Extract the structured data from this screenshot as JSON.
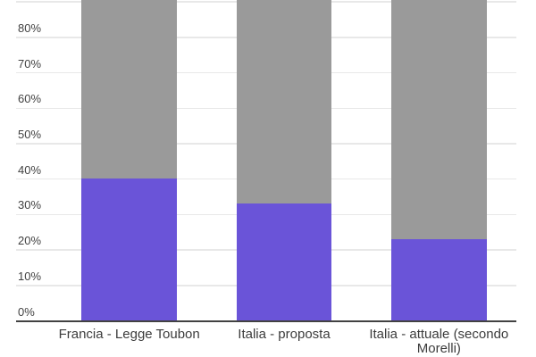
{
  "page": {
    "background": "#ffffff"
  },
  "chart_data": {
    "type": "bar",
    "stacked": true,
    "orientation": "vertical",
    "note": "Top of chart is cropped out of the screenshot; stacked bars run past the visible top edge (stacks assumed to total 100%). No title or legend visible.",
    "categories": [
      "Francia - Legge Toubon",
      "Italia - proposta",
      "Italia - attuale (secondo Morelli)"
    ],
    "series": [
      {
        "name": "purple-segment",
        "color": "#6A54D8",
        "values": [
          40,
          33,
          23
        ]
      },
      {
        "name": "gray-segment",
        "color": "#9A9A9A",
        "values": [
          60,
          67,
          77
        ]
      }
    ],
    "value_unit": "%",
    "y_axis": {
      "tick_values": [
        0,
        10,
        20,
        30,
        40,
        50,
        60,
        70,
        80
      ],
      "tick_labels": [
        "0%",
        "10%",
        "20%",
        "30%",
        "40%",
        "50%",
        "60%",
        "70%",
        "80%"
      ],
      "visible_top_value": 90.5,
      "gridlines": true,
      "gridline_color": "#e8e8e8",
      "axis_line_color": "#424242",
      "tick_color": "#424242"
    },
    "x_axis": {
      "label_color": "#3c3c3c",
      "labels": [
        "Francia - Legge Toubon",
        "Italia - proposta",
        "Italia - attuale (secondo Morelli)"
      ]
    },
    "legend": "none visible"
  }
}
